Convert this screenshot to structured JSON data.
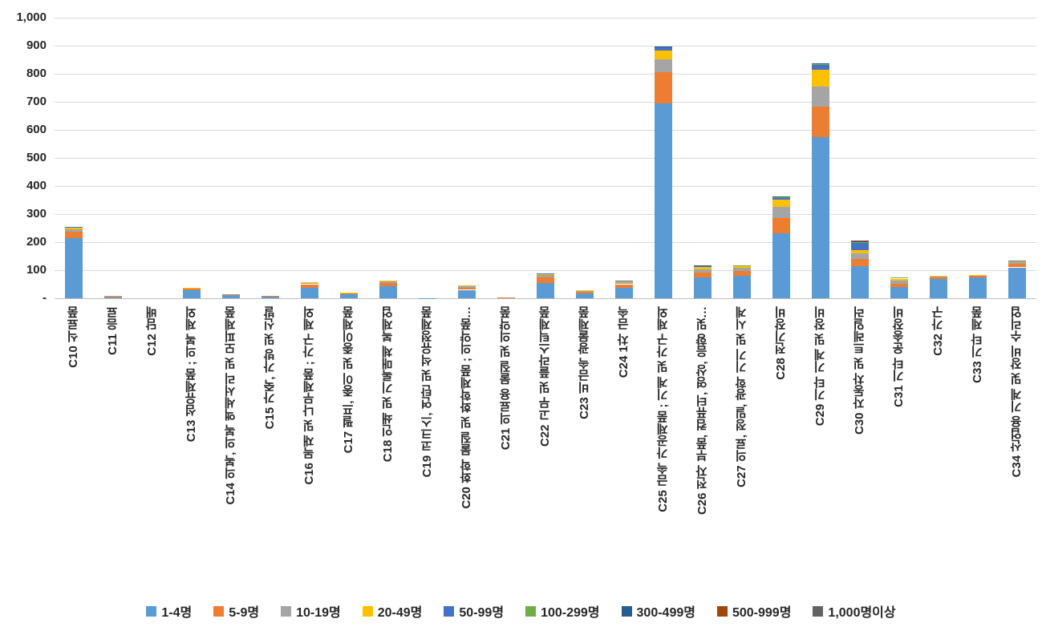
{
  "chart_data": {
    "type": "bar",
    "stacked": true,
    "title": "",
    "xlabel": "",
    "ylabel": "",
    "ylim": [
      0,
      1000
    ],
    "ytick_values": [
      0,
      100,
      200,
      300,
      400,
      500,
      600,
      700,
      800,
      900,
      1000
    ],
    "ytick_labels": [
      "-",
      "100",
      "200",
      "300",
      "400",
      "500",
      "600",
      "700",
      "800",
      "900",
      "1,000"
    ],
    "grid": true,
    "legend_position": "bottom",
    "categories": [
      "C10 식료품",
      "C11 음료",
      "C12 담배",
      "C13 섬유제품 ; 의복 제외",
      "C14 의복, 의복 액세서리 및 모피제품",
      "C15 가죽, 가방 및 신발",
      "C16 목재 및 나무제품 ; 가구 제외",
      "C17 펄프, 종이 및 종이제품",
      "C18 인쇄 및 기록매체 복제업",
      "C19 코크스, 연탄 및 석유정제품",
      "C20 화학 물질 및 화학제품 ; 의약품…",
      "C21 의료용 물질 및 의약품",
      "C22 고무 및 플라스틱제품",
      "C23 비금속 광물제품",
      "C24 1차 금속",
      "C25 금속 가공제품 ; 기계 및 가구 제외",
      "C26 전자 부품, 컴퓨터, 영상, 음향 및…",
      "C27 의료, 정밀, 광학 기기 및 시계",
      "C28 전기장비",
      "C29 기타 기계 및 장비",
      "C30 자동차 및 트레일러",
      "C31 기타 운송장비",
      "C32 가구",
      "C33 기타 제품",
      "C34 산업용 기계 및 장비 수리업"
    ],
    "series": [
      {
        "name": "1-4명",
        "color": "#5B9BD5",
        "values": [
          215,
          4,
          0,
          28,
          12,
          7,
          38,
          13,
          42,
          1,
          30,
          2,
          55,
          18,
          38,
          695,
          75,
          80,
          232,
          575,
          115,
          40,
          68,
          75,
          110
        ]
      },
      {
        "name": "5-9명",
        "color": "#ED7D31",
        "values": [
          22,
          3,
          0,
          5,
          1,
          1,
          12,
          4,
          12,
          0,
          8,
          1,
          20,
          6,
          12,
          112,
          16,
          16,
          55,
          108,
          25,
          12,
          7,
          5,
          12
        ]
      },
      {
        "name": "10-19명",
        "color": "#A5A5A5",
        "values": [
          10,
          1,
          0,
          3,
          0,
          0,
          4,
          2,
          5,
          0,
          4,
          0,
          8,
          2,
          7,
          45,
          12,
          12,
          40,
          70,
          20,
          10,
          3,
          3,
          6
        ]
      },
      {
        "name": "20-49명",
        "color": "#FFC000",
        "values": [
          6,
          0,
          0,
          2,
          0,
          0,
          3,
          1,
          3,
          0,
          3,
          0,
          4,
          2,
          4,
          30,
          8,
          7,
          25,
          60,
          12,
          8,
          2,
          1,
          3
        ]
      },
      {
        "name": "50-99명",
        "color": "#4472C4",
        "values": [
          2,
          0,
          0,
          0,
          0,
          0,
          0,
          0,
          0,
          0,
          0,
          0,
          1,
          0,
          1,
          12,
          4,
          2,
          8,
          18,
          25,
          4,
          0,
          0,
          3
        ]
      },
      {
        "name": "100-299명",
        "color": "#70AD47",
        "values": [
          0,
          0,
          0,
          0,
          0,
          0,
          0,
          0,
          0,
          0,
          0,
          0,
          0,
          0,
          0,
          2,
          1,
          1,
          1,
          3,
          2,
          1,
          0,
          0,
          0
        ]
      },
      {
        "name": "300-499명",
        "color": "#255E91",
        "values": [
          0,
          0,
          0,
          0,
          0,
          0,
          0,
          0,
          0,
          0,
          0,
          0,
          0,
          0,
          0,
          2,
          1,
          0,
          1,
          4,
          4,
          0,
          0,
          0,
          0
        ]
      },
      {
        "name": "500-999명",
        "color": "#9E480E",
        "values": [
          0,
          0,
          0,
          0,
          0,
          0,
          0,
          0,
          0,
          0,
          0,
          0,
          0,
          0,
          0,
          0,
          0,
          0,
          0,
          0,
          2,
          0,
          0,
          0,
          0
        ]
      },
      {
        "name": "1,000명이상",
        "color": "#636363",
        "values": [
          0,
          0,
          0,
          0,
          0,
          0,
          0,
          0,
          0,
          0,
          0,
          0,
          0,
          0,
          0,
          0,
          0,
          0,
          0,
          0,
          0,
          0,
          0,
          0,
          0
        ]
      }
    ],
    "colors": {
      "gridline": "#d9d9d9",
      "axis_line": "#bfbfbf",
      "text": "#262626",
      "background": "#ffffff"
    }
  }
}
